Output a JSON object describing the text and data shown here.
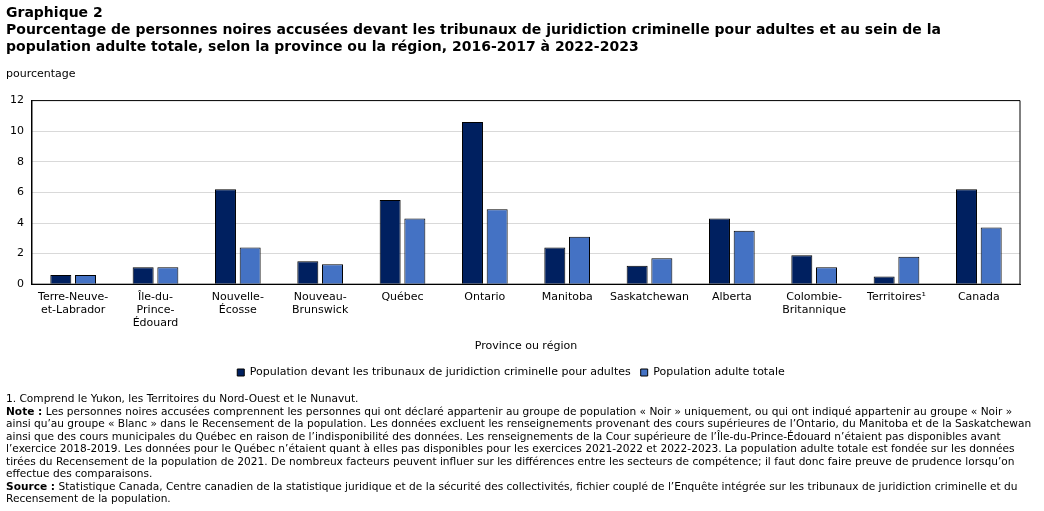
{
  "chart_data": {
    "type": "bar",
    "title": "Graphique 2",
    "subtitle": "Pourcentage de personnes noires accusées devant les tribunaux de juridiction criminelle pour adultes et au sein de la population adulte totale, selon la province ou la région, 2016-2017 à 2022-2023",
    "ylabel": "pourcentage",
    "xlabel": "Province ou région",
    "categories": [
      "Terre-Neuve-et-Labrador",
      "Île-du-Prince-Édouard",
      "Nouvelle-Écosse",
      "Nouveau-Brunswick",
      "Québec",
      "Ontario",
      "Manitoba",
      "Saskatchewan",
      "Alberta",
      "Colombie-Britannique",
      "Territoires¹",
      "Canada"
    ],
    "series": [
      {
        "name": "Population devant les tribunaux de juridiction criminelle pour adultes",
        "color": "#002060",
        "values": [
          0.6,
          1.1,
          6.2,
          1.5,
          5.5,
          10.6,
          2.4,
          1.2,
          4.3,
          1.9,
          0.5,
          6.2
        ]
      },
      {
        "name": "Population adulte totale",
        "color": "#4472c4",
        "values": [
          0.6,
          1.1,
          2.4,
          1.3,
          4.3,
          4.9,
          3.1,
          1.7,
          3.5,
          1.1,
          1.8,
          3.7
        ]
      }
    ],
    "ylim": [
      0,
      12
    ],
    "yticks": [
      0,
      2,
      4,
      6,
      8,
      10,
      12
    ],
    "grid": "y",
    "legend": "bottom",
    "annotations": [
      "1. Comprend le Yukon, les Territoires du Nord-Ouest et le Nunavut.",
      "Note : Les personnes noires accusées comprennent les personnes qui ont déclaré appartenir au groupe de population « Noir » uniquement, ou qui ont indiqué appartenir au groupe « Noir » ainsi qu’au groupe « Blanc » dans le Recensement de la population. Les données excluent les renseignements provenant des cours supérieures de l’Ontario, du Manitoba et de la Saskatchewan ainsi que des cours municipales du Québec en raison de l’indisponibilité des données. Les renseignements de la Cour supérieure de l’Île-du-Prince-Édouard n’étaient pas disponibles avant l’exercice 2018-2019. Les données pour le Québec n’étaient quant à elles pas disponibles pour les exercices 2021-2022 et 2022-2023. La population adulte totale est fondée sur les données tirées du Recensement de la population de 2021. De nombreux facteurs peuvent influer sur les différences entre les secteurs de compétence; il faut donc faire preuve de prudence lorsqu’on effectue des comparaisons.",
      "Source : Statistique Canada, Centre canadien de la statistique juridique et de la sécurité des collectivités, fichier couplé de l’Enquête intégrée sur les tribunaux de juridiction criminelle et du Recensement de la population."
    ]
  }
}
